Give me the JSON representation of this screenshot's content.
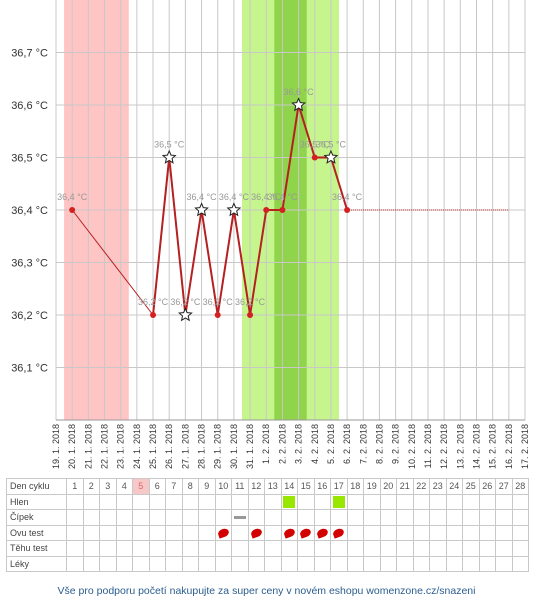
{
  "chart_data": {
    "type": "line",
    "x": [
      "19. 1. 2018",
      "20. 1. 2018",
      "21. 1. 2018",
      "22. 1. 2018",
      "23. 1. 2018",
      "24. 1. 2018",
      "25. 1. 2018",
      "26. 1. 2018",
      "27. 1. 2018",
      "28. 1. 2018",
      "29. 1. 2018",
      "30. 1. 2018",
      "31. 1. 2018",
      "1. 2. 2018",
      "2. 2. 2018",
      "3. 2. 2018",
      "4. 2. 2018",
      "5. 2. 2018",
      "6. 2. 2018",
      "7. 2. 2018",
      "8. 2. 2018",
      "9. 2. 2018",
      "10. 2. 2018",
      "11. 2. 2018",
      "12. 2. 2018",
      "13. 2. 2018",
      "14. 2. 2018",
      "15. 2. 2018",
      "16. 2. 2018",
      "17. 2. 2018"
    ],
    "ylim": [
      36.0,
      36.8
    ],
    "yticks": [
      "36,1 °C",
      "36,2 °C",
      "36,3 °C",
      "36,4 °C",
      "36,5 °C",
      "36,6 °C",
      "36,7 °C"
    ],
    "ytick_values": [
      36.1,
      36.2,
      36.3,
      36.4,
      36.5,
      36.6,
      36.7
    ],
    "grid": true,
    "temperatures": [
      {
        "date": "20. 1. 2018",
        "value": 36.4,
        "label": "36,4 °C",
        "marker": "dot"
      },
      {
        "date": "25. 1. 2018",
        "value": 36.2,
        "label": "36,2 °C",
        "marker": "dot"
      },
      {
        "date": "26. 1. 2018",
        "value": 36.5,
        "label": "36,5 °C",
        "marker": "star"
      },
      {
        "date": "27. 1. 2018",
        "value": 36.2,
        "label": "36,2 °C",
        "marker": "star"
      },
      {
        "date": "28. 1. 2018",
        "value": 36.4,
        "label": "36,4 °C",
        "marker": "star"
      },
      {
        "date": "29. 1. 2018",
        "value": 36.2,
        "label": "36,2 °C",
        "marker": "dot"
      },
      {
        "date": "30. 1. 2018",
        "value": 36.4,
        "label": "36,4 °C",
        "marker": "star"
      },
      {
        "date": "31. 1. 2018",
        "value": 36.2,
        "label": "36,2 °C",
        "marker": "dot"
      },
      {
        "date": "1. 2. 2018",
        "value": 36.4,
        "label": "36,4 °C",
        "marker": "dot"
      },
      {
        "date": "2. 2. 2018",
        "value": 36.4,
        "label": "36,4 °C",
        "marker": "dot"
      },
      {
        "date": "3. 2. 2018",
        "value": 36.6,
        "label": "36,6 °C",
        "marker": "star"
      },
      {
        "date": "4. 2. 2018",
        "value": 36.5,
        "label": "36,5 °C",
        "marker": "dot"
      },
      {
        "date": "5. 2. 2018",
        "value": 36.5,
        "label": "36,5 °C",
        "marker": "star"
      },
      {
        "date": "6. 2. 2018",
        "value": 36.4,
        "label": "36,4 °C",
        "marker": "dot"
      }
    ],
    "coverline_end_date": "16. 2. 2018",
    "period_range": [
      "20. 1. 2018",
      "23. 1. 2018"
    ],
    "fertile_range": [
      "31. 1. 2018",
      "5. 2. 2018"
    ],
    "peak_range": [
      "2. 2. 2018",
      "3. 2. 2018"
    ]
  },
  "colors": {
    "line": "#b52020",
    "period": "#ffc4c4",
    "fertile": "#c5f58c",
    "peak": "#8fd44a",
    "grid": "#c8c8c8"
  },
  "table": {
    "rows": [
      "Den cyklu",
      "Hlen",
      "Čípek",
      "Ovu test",
      "Těhu test",
      "Léky"
    ],
    "days": [
      "1",
      "2",
      "3",
      "4",
      "5",
      "6",
      "7",
      "8",
      "9",
      "10",
      "11",
      "12",
      "13",
      "14",
      "15",
      "16",
      "17",
      "18",
      "19",
      "20",
      "21",
      "22",
      "23",
      "24",
      "25",
      "26",
      "27",
      "28"
    ],
    "period_day": "5",
    "mucus_days": [
      "14",
      "17"
    ],
    "cervix_days": [
      "11"
    ],
    "ovu_test_days": [
      "10",
      "12",
      "14",
      "15",
      "16",
      "17"
    ]
  },
  "footer": "Vše pro podporu početí nakupujte za super ceny v novém eshopu womenzone.cz/snazeni"
}
